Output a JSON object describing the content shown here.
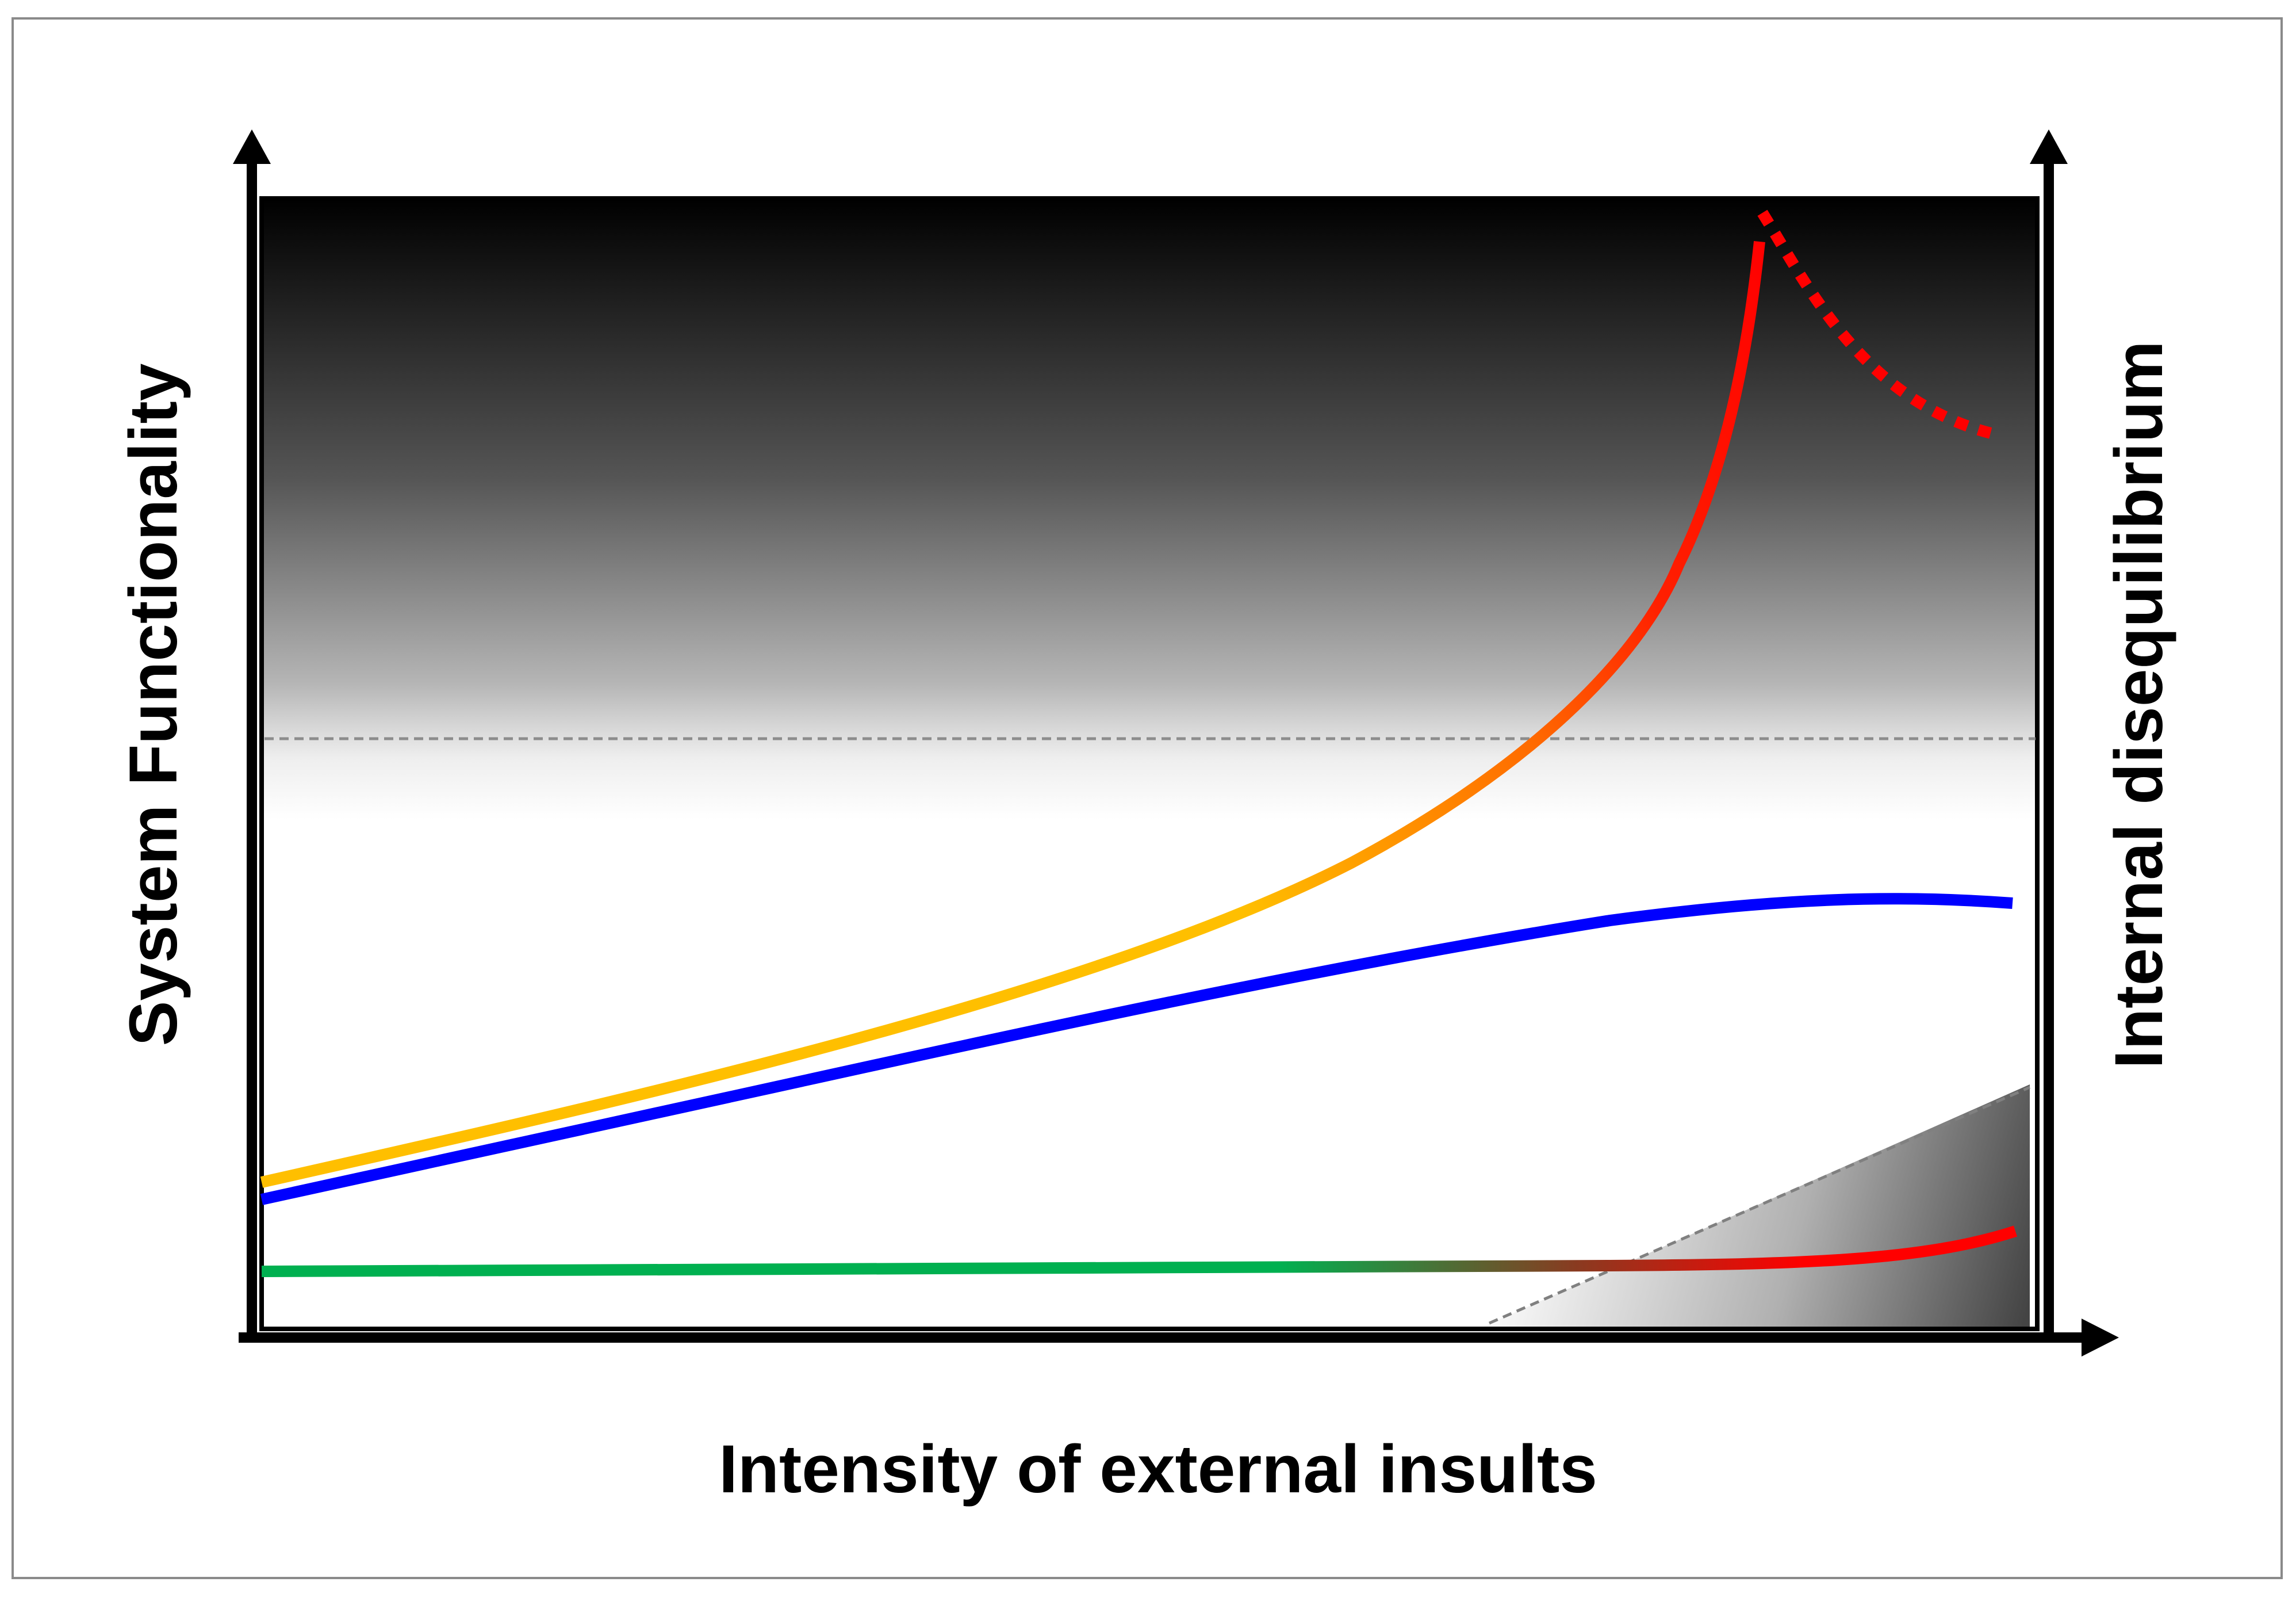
{
  "axes": {
    "x_label": "Intensity of external insults",
    "y_left_label": "System Functionality",
    "y_right_label": "Internal disequilibrium"
  },
  "colors": {
    "yellow_curve": "#ffbf00",
    "orange_transition": "#ff6a00",
    "red_curve": "#ff0000",
    "blue_curve": "#0000ff",
    "green_curve": "#00b050",
    "threshold_line": "#8c8c8c",
    "top_shade": "#000000",
    "frame": "#8a8a8a"
  },
  "curves": [
    {
      "id": "yellow-red-curve",
      "description_colors": [
        "#ffbf00",
        "#ff6a00",
        "#ff0000"
      ]
    },
    {
      "id": "red-dotted-decline",
      "description_colors": [
        "#ff0000"
      ]
    },
    {
      "id": "blue-curve",
      "description_colors": [
        "#0000ff"
      ]
    },
    {
      "id": "green-red-curve",
      "description_colors": [
        "#00b050",
        "#ff0000"
      ]
    }
  ]
}
